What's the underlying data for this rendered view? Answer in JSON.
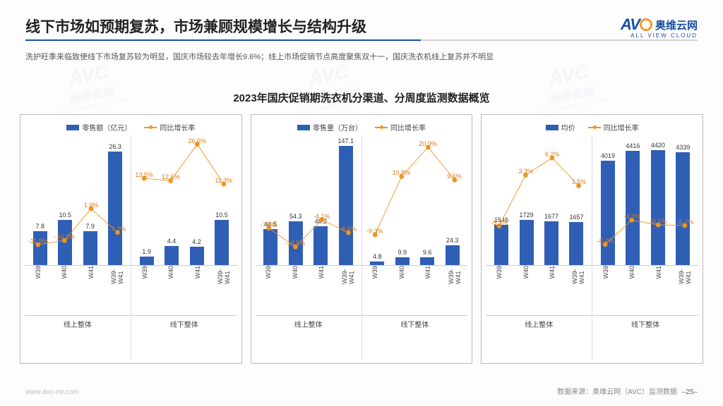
{
  "header": {
    "title": "线下市场如预期复苏，市场兼顾规模增长与结构升级",
    "logo_avc": "AV",
    "logo_cn": "奥维云网",
    "logo_en": "ALL VIEW CLOUD"
  },
  "subtitle": "洗护旺季来临致使线下市场复苏较为明显，国庆市场较去年增长9.6%；线上市场促销节点高度聚焦双十一，国庆洗衣机线上复苏并不明显",
  "chart_title": "2023年国庆促销期洗衣机分渠道、分周度监测数据概览",
  "footer": {
    "url": "www.avc-mr.com",
    "source": "数据来源：奥维云网（AVC）监测数据",
    "page": "–25–"
  },
  "colors": {
    "bar": "#2f5fb5",
    "line": "#f0941d",
    "axis": "#cccccc",
    "text": "#333333",
    "bg": "#fdfdfd"
  },
  "charts": [
    {
      "legend_bar": "零售额（亿元）",
      "legend_line": "同比增长率",
      "bar_max": 30,
      "line_min": -20,
      "line_max": 30,
      "groups": [
        {
          "name": "线上整体",
          "cats": [
            "W39",
            "W40",
            "W41",
            "W39-W41"
          ],
          "bars": [
            7.8,
            10.5,
            7.9,
            26.3
          ],
          "line": [
            -11.9,
            -10.3,
            1.9,
            -7.2
          ],
          "line_labels": [
            "-11.9%",
            "-10.3%",
            "1.9%",
            "-7.2%"
          ]
        },
        {
          "name": "线下整体",
          "cats": [
            "W39",
            "W40",
            "W41",
            "W39-W41"
          ],
          "bars": [
            1.9,
            4.4,
            4.2,
            10.5
          ],
          "line": [
            13.5,
            12.6,
            26.6,
            11.3
          ],
          "line_labels": [
            "13.5%",
            "12.6%",
            "26.6%",
            "11.3%"
          ]
        }
      ]
    },
    {
      "legend_bar": "零售量（万台）",
      "legend_line": "同比增长率",
      "bar_max": 160,
      "line_min": -20,
      "line_max": 25,
      "groups": [
        {
          "name": "线上整体",
          "cats": [
            "W39",
            "W40",
            "W41",
            "W39-W41"
          ],
          "bars": [
            44.5,
            54.3,
            48.2,
            147.1
          ],
          "line": [
            -7.0,
            -13.5,
            -4.1,
            -8.6
          ],
          "line_labels": [
            "-7.0%",
            "-13.5%",
            "-4.1%",
            "-8.6%"
          ]
        },
        {
          "name": "线下整体",
          "cats": [
            "W39",
            "W40",
            "W41",
            "W39-W41"
          ],
          "bars": [
            4.8,
            9.9,
            9.6,
            24.3
          ],
          "line": [
            -9.3,
            10.8,
            20.9,
            9.6
          ],
          "line_labels": [
            "-9.3%",
            "10.8%",
            "20.9%",
            "9.6%"
          ]
        }
      ]
    },
    {
      "legend_bar": "均价",
      "legend_line": "同比增长率",
      "bar_max": 5000,
      "line_min": -12,
      "line_max": 10,
      "groups": [
        {
          "name": "线上整体",
          "cats": [
            "W39",
            "W40",
            "W41",
            "W39-W41"
          ],
          "bars": [
            1546,
            1729,
            1677,
            1657
          ],
          "line": [
            -5.3,
            3.3,
            6.2,
            1.5
          ],
          "line_labels": [
            "-5.3%",
            "3.3%",
            "6.2%",
            "1.5%"
          ]
        },
        {
          "name": "线下整体",
          "cats": [
            "W39",
            "W40",
            "W41",
            "W39-W41"
          ],
          "bars": [
            4019,
            4416,
            4420,
            4339
          ],
          "line": [
            -8.4,
            -4.3,
            -5.1,
            -5.2
          ],
          "line_labels": [
            "-8.4%",
            "-4.3%",
            "-5.1%",
            "-5.2%"
          ]
        }
      ]
    }
  ],
  "watermark": {
    "top": "AVC",
    "cn": "奥维云网",
    "en": "ALL VIEW CLOUD"
  }
}
